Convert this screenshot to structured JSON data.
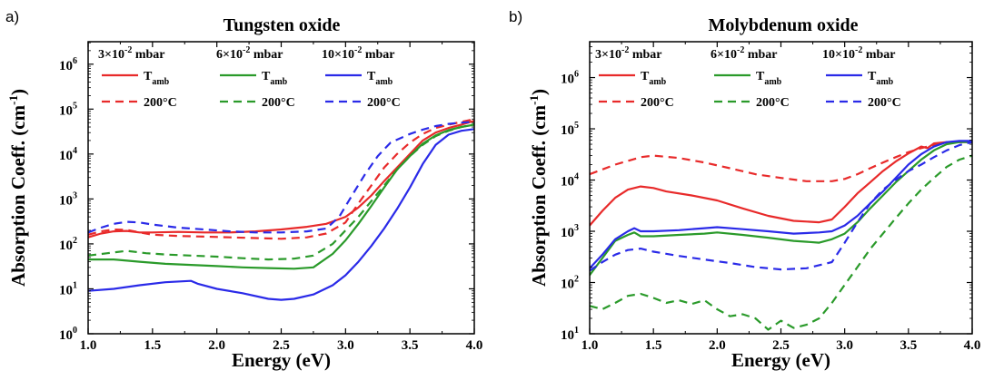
{
  "chart_data": [
    {
      "panel": "a)",
      "type": "line",
      "title": "Tungsten oxide",
      "xlabel": "Energy (eV)",
      "ylabel": "Absorption Coeff. (cm",
      "ylabel_sup": "-1",
      "ylabel_close": ")",
      "xlim": [
        1.0,
        4.0
      ],
      "ylim_exp": [
        0,
        6.5
      ],
      "yscale": "log",
      "xticks": [
        "1.0",
        "1.5",
        "2.0",
        "2.5",
        "3.0",
        "3.5",
        "4.0"
      ],
      "yticks_exp": [
        "0",
        "1",
        "2",
        "3",
        "4",
        "5",
        "6"
      ],
      "legend_headers": [
        {
          "mantissa": "3×10",
          "exp": "-2",
          "unit": " mbar"
        },
        {
          "mantissa": "6×10",
          "exp": "-2",
          "unit": " mbar"
        },
        {
          "mantissa": "10×10",
          "exp": "-2",
          "unit": " mbar"
        }
      ],
      "legend_rows": [
        {
          "main": "T",
          "sub": "amb",
          "dash": "solid"
        },
        {
          "main": "200°C",
          "sub": "",
          "dash": "dashed"
        }
      ],
      "series": [
        {
          "pressure": "3×10-2 mbar",
          "condition": "Tamb",
          "color": "#e82a2a",
          "dash": "solid",
          "x": [
            1.0,
            1.1,
            1.2,
            1.3,
            1.4,
            1.5,
            1.7,
            1.9,
            2.1,
            2.3,
            2.5,
            2.7,
            2.85,
            3.0,
            3.1,
            3.2,
            3.3,
            3.4,
            3.5,
            3.6,
            3.7,
            3.8,
            3.9,
            4.0
          ],
          "y": [
            140,
            170,
            190,
            195,
            180,
            180,
            185,
            180,
            180,
            190,
            210,
            240,
            280,
            400,
            650,
            1200,
            2500,
            5000,
            10000,
            20000,
            30000,
            38000,
            45000,
            55000
          ]
        },
        {
          "pressure": "3×10-2 mbar",
          "condition": "200°C",
          "color": "#e82a2a",
          "dash": "dashed",
          "x": [
            1.0,
            1.1,
            1.2,
            1.3,
            1.4,
            1.5,
            1.7,
            1.9,
            2.1,
            2.3,
            2.5,
            2.7,
            2.85,
            3.0,
            3.1,
            3.2,
            3.3,
            3.4,
            3.5,
            3.6,
            3.7,
            3.8,
            3.9,
            4.0
          ],
          "y": [
            160,
            190,
            210,
            205,
            180,
            160,
            150,
            145,
            140,
            135,
            130,
            140,
            170,
            300,
            800,
            2000,
            5000,
            10000,
            18000,
            28000,
            38000,
            45000,
            52000,
            60000
          ]
        },
        {
          "pressure": "6×10-2 mbar",
          "condition": "Tamb",
          "color": "#2a9a2a",
          "dash": "solid",
          "x": [
            1.0,
            1.2,
            1.4,
            1.6,
            1.8,
            2.0,
            2.2,
            2.4,
            2.6,
            2.75,
            2.9,
            3.0,
            3.1,
            3.2,
            3.3,
            3.4,
            3.5,
            3.6,
            3.7,
            3.8,
            3.9,
            4.0
          ],
          "y": [
            45,
            45,
            40,
            36,
            34,
            32,
            30,
            29,
            28,
            30,
            60,
            120,
            280,
            700,
            1800,
            4500,
            9000,
            17000,
            26000,
            34000,
            40000,
            45000
          ]
        },
        {
          "pressure": "6×10-2 mbar",
          "condition": "200°C",
          "color": "#2a9a2a",
          "dash": "dashed",
          "x": [
            1.0,
            1.15,
            1.3,
            1.45,
            1.6,
            1.8,
            2.0,
            2.2,
            2.4,
            2.6,
            2.75,
            2.9,
            3.0,
            3.1,
            3.2,
            3.3,
            3.4,
            3.5,
            3.6,
            3.7,
            3.8,
            3.9,
            4.0
          ],
          "y": [
            55,
            62,
            70,
            62,
            58,
            55,
            52,
            48,
            45,
            47,
            55,
            100,
            200,
            400,
            900,
            2000,
            4500,
            9000,
            16000,
            25000,
            33000,
            40000,
            46000
          ]
        },
        {
          "pressure": "10×10-2 mbar",
          "condition": "Tamb",
          "color": "#2a2ae8",
          "dash": "solid",
          "x": [
            1.0,
            1.2,
            1.4,
            1.6,
            1.8,
            1.85,
            2.0,
            2.2,
            2.4,
            2.5,
            2.6,
            2.75,
            2.9,
            3.0,
            3.1,
            3.2,
            3.3,
            3.4,
            3.5,
            3.6,
            3.7,
            3.8,
            3.9,
            4.0
          ],
          "y": [
            9,
            10,
            12,
            14,
            15,
            13,
            10,
            8,
            6,
            5.7,
            6,
            7.5,
            12,
            20,
            40,
            90,
            220,
            600,
            1800,
            6000,
            16000,
            27000,
            33000,
            36000
          ]
        },
        {
          "pressure": "10×10-2 mbar",
          "condition": "200°C",
          "color": "#2a2ae8",
          "dash": "dashed",
          "x": [
            1.0,
            1.1,
            1.2,
            1.3,
            1.4,
            1.5,
            1.7,
            1.9,
            2.1,
            2.3,
            2.5,
            2.7,
            2.85,
            2.95,
            3.05,
            3.15,
            3.25,
            3.35,
            3.5,
            3.6,
            3.7,
            3.8,
            3.9,
            4.0
          ],
          "y": [
            180,
            230,
            280,
            310,
            300,
            270,
            230,
            210,
            190,
            180,
            180,
            190,
            220,
            400,
            1200,
            3500,
            9000,
            18000,
            28000,
            35000,
            42000,
            47000,
            50000,
            52000
          ]
        }
      ]
    },
    {
      "panel": "b)",
      "type": "line",
      "title": "Molybdenum oxide",
      "xlabel": "Energy (eV)",
      "ylabel": "Absorption Coeff. (cm",
      "ylabel_sup": "-1",
      "ylabel_close": ")",
      "xlim": [
        1.0,
        4.0
      ],
      "ylim_exp": [
        1,
        6.7
      ],
      "yscale": "log",
      "xticks": [
        "1.0",
        "1.5",
        "2.0",
        "2.5",
        "3.0",
        "3.5",
        "4.0"
      ],
      "yticks_exp": [
        "1",
        "2",
        "3",
        "4",
        "5",
        "6"
      ],
      "legend_headers": [
        {
          "mantissa": "3×10",
          "exp": "-2",
          "unit": " mbar"
        },
        {
          "mantissa": "6×10",
          "exp": "-2",
          "unit": " mbar"
        },
        {
          "mantissa": "10×10",
          "exp": "-2",
          "unit": " mbar"
        }
      ],
      "legend_rows": [
        {
          "main": "T",
          "sub": "amb",
          "dash": "solid"
        },
        {
          "main": "200°C",
          "sub": "",
          "dash": "dashed"
        }
      ],
      "series": [
        {
          "pressure": "3×10-2 mbar",
          "condition": "Tamb",
          "color": "#e82a2a",
          "dash": "solid",
          "x": [
            1.0,
            1.1,
            1.2,
            1.3,
            1.4,
            1.5,
            1.6,
            1.8,
            2.0,
            2.2,
            2.4,
            2.6,
            2.8,
            2.9,
            3.0,
            3.1,
            3.2,
            3.3,
            3.4,
            3.5,
            3.6,
            3.65,
            3.7,
            3.8,
            3.9,
            4.0
          ],
          "y": [
            1300,
            2500,
            4500,
            6500,
            7500,
            7000,
            6000,
            5000,
            4000,
            2800,
            2000,
            1600,
            1500,
            1700,
            3000,
            5500,
            9000,
            15000,
            23000,
            33000,
            45000,
            42000,
            52000,
            55000,
            55000,
            55000
          ]
        },
        {
          "pressure": "3×10-2 mbar",
          "condition": "200°C",
          "color": "#e82a2a",
          "dash": "dashed",
          "x": [
            1.0,
            1.2,
            1.4,
            1.5,
            1.7,
            1.9,
            2.1,
            2.3,
            2.5,
            2.7,
            2.9,
            3.0,
            3.1,
            3.2,
            3.3,
            3.4,
            3.5,
            3.6,
            3.7,
            3.8,
            3.9,
            4.0
          ],
          "y": [
            13000,
            20000,
            28000,
            30000,
            27000,
            22000,
            17000,
            13000,
            11000,
            9500,
            9500,
            10500,
            13000,
            17000,
            22000,
            28000,
            35000,
            42000,
            48000,
            52000,
            55000,
            57000
          ]
        },
        {
          "pressure": "6×10-2 mbar",
          "condition": "Tamb",
          "color": "#2a9a2a",
          "dash": "solid",
          "x": [
            1.0,
            1.1,
            1.2,
            1.3,
            1.35,
            1.4,
            1.5,
            1.7,
            1.9,
            2.0,
            2.2,
            2.4,
            2.6,
            2.8,
            2.9,
            3.0,
            3.1,
            3.2,
            3.3,
            3.4,
            3.5,
            3.6,
            3.7,
            3.8,
            3.9,
            4.0
          ],
          "y": [
            140,
            300,
            650,
            850,
            950,
            800,
            800,
            850,
            900,
            950,
            850,
            750,
            650,
            600,
            700,
            900,
            1500,
            2800,
            5000,
            9000,
            15000,
            25000,
            38000,
            50000,
            55000,
            55000
          ]
        },
        {
          "pressure": "6×10-2 mbar",
          "condition": "200°C",
          "color": "#2a9a2a",
          "dash": "dashed",
          "x": [
            1.0,
            1.1,
            1.2,
            1.3,
            1.4,
            1.5,
            1.6,
            1.7,
            1.8,
            1.9,
            2.0,
            2.1,
            2.2,
            2.3,
            2.4,
            2.5,
            2.6,
            2.7,
            2.8,
            2.9,
            3.0,
            3.1,
            3.2,
            3.3,
            3.4,
            3.5,
            3.6,
            3.7,
            3.8,
            3.9,
            4.0
          ],
          "y": [
            35,
            30,
            40,
            55,
            60,
            50,
            40,
            45,
            38,
            45,
            30,
            22,
            24,
            20,
            12,
            18,
            13,
            15,
            20,
            40,
            90,
            200,
            450,
            900,
            1800,
            3500,
            6500,
            11000,
            18000,
            25000,
            30000
          ]
        },
        {
          "pressure": "10×10-2 mbar",
          "condition": "Tamb",
          "color": "#2a2ae8",
          "dash": "solid",
          "x": [
            1.0,
            1.1,
            1.2,
            1.3,
            1.35,
            1.4,
            1.5,
            1.7,
            1.9,
            2.0,
            2.2,
            2.4,
            2.6,
            2.8,
            2.9,
            3.0,
            3.1,
            3.2,
            3.3,
            3.4,
            3.5,
            3.6,
            3.7,
            3.8,
            3.9,
            4.0
          ],
          "y": [
            190,
            350,
            700,
            1000,
            1150,
            1000,
            1000,
            1050,
            1150,
            1200,
            1100,
            1000,
            900,
            950,
            1000,
            1300,
            2000,
            3500,
            6000,
            11000,
            20000,
            32000,
            45000,
            55000,
            58000,
            58000
          ]
        },
        {
          "pressure": "10×10-2 mbar",
          "condition": "200°C",
          "color": "#2a2ae8",
          "dash": "dashed",
          "x": [
            1.0,
            1.1,
            1.2,
            1.3,
            1.4,
            1.5,
            1.7,
            1.9,
            2.1,
            2.3,
            2.5,
            2.7,
            2.9,
            3.0,
            3.1,
            3.2,
            3.3,
            3.4,
            3.5,
            3.6,
            3.7,
            3.8,
            3.9,
            4.0
          ],
          "y": [
            170,
            250,
            350,
            430,
            460,
            400,
            330,
            280,
            240,
            200,
            180,
            190,
            250,
            600,
            1500,
            3500,
            6500,
            10000,
            15000,
            20000,
            28000,
            38000,
            48000,
            55000
          ]
        }
      ]
    }
  ]
}
